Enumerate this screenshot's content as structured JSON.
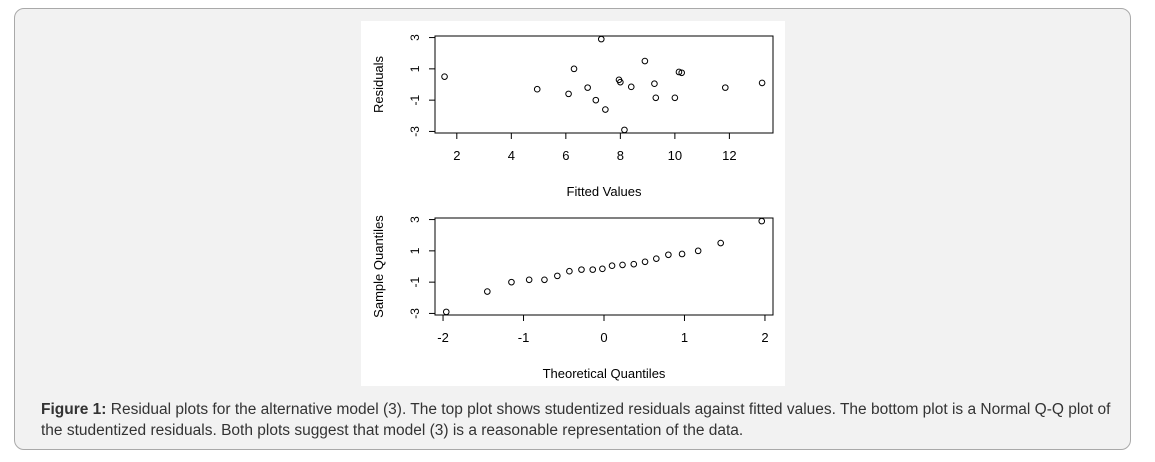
{
  "chart_data": [
    {
      "type": "scatter",
      "title": "",
      "xlabel": "Fitted Values",
      "ylabel": "Residuals",
      "xlim": [
        1.2,
        13.6
      ],
      "ylim": [
        -3.1,
        3.1
      ],
      "xticks": [
        2,
        4,
        6,
        8,
        10,
        12
      ],
      "yticks": [
        -3,
        -1,
        1,
        3
      ],
      "xtick_labels": [
        "2",
        "4",
        "6",
        "8",
        "10",
        "12"
      ],
      "ytick_labels": [
        "-3",
        "-1",
        "1",
        "3"
      ],
      "grid": false,
      "points": [
        {
          "x": 1.55,
          "y": 0.5
        },
        {
          "x": 4.95,
          "y": -0.3
        },
        {
          "x": 6.1,
          "y": -0.6
        },
        {
          "x": 6.3,
          "y": 1.0
        },
        {
          "x": 6.8,
          "y": -0.2
        },
        {
          "x": 7.1,
          "y": -1.0
        },
        {
          "x": 7.3,
          "y": 2.9
        },
        {
          "x": 7.45,
          "y": -1.6
        },
        {
          "x": 7.95,
          "y": 0.3
        },
        {
          "x": 8.0,
          "y": 0.15
        },
        {
          "x": 8.15,
          "y": -2.9
        },
        {
          "x": 8.4,
          "y": -0.15
        },
        {
          "x": 8.9,
          "y": 1.5
        },
        {
          "x": 9.25,
          "y": 0.05
        },
        {
          "x": 9.3,
          "y": -0.85
        },
        {
          "x": 10.0,
          "y": -0.85
        },
        {
          "x": 10.15,
          "y": 0.8
        },
        {
          "x": 10.25,
          "y": 0.75
        },
        {
          "x": 11.85,
          "y": -0.2
        },
        {
          "x": 13.2,
          "y": 0.1
        }
      ]
    },
    {
      "type": "scatter",
      "title": "",
      "xlabel": "Theoretical Quantiles",
      "ylabel": "Sample Quantiles",
      "xlim": [
        -2.1,
        2.1
      ],
      "ylim": [
        -3.1,
        3.1
      ],
      "xticks": [
        -2,
        -1,
        0,
        1,
        2
      ],
      "yticks": [
        -3,
        -1,
        1,
        3
      ],
      "xtick_labels": [
        "-2",
        "-1",
        "0",
        "1",
        "2"
      ],
      "ytick_labels": [
        "-3",
        "-1",
        "1",
        "3"
      ],
      "grid": false,
      "points": [
        {
          "x": -1.96,
          "y": -2.9
        },
        {
          "x": -1.45,
          "y": -1.6
        },
        {
          "x": -1.15,
          "y": -1.0
        },
        {
          "x": -0.93,
          "y": -0.85
        },
        {
          "x": -0.74,
          "y": -0.85
        },
        {
          "x": -0.58,
          "y": -0.6
        },
        {
          "x": -0.43,
          "y": -0.3
        },
        {
          "x": -0.28,
          "y": -0.2
        },
        {
          "x": -0.14,
          "y": -0.2
        },
        {
          "x": -0.02,
          "y": -0.15
        },
        {
          "x": 0.1,
          "y": 0.05
        },
        {
          "x": 0.23,
          "y": 0.1
        },
        {
          "x": 0.37,
          "y": 0.15
        },
        {
          "x": 0.51,
          "y": 0.3
        },
        {
          "x": 0.65,
          "y": 0.5
        },
        {
          "x": 0.8,
          "y": 0.75
        },
        {
          "x": 0.97,
          "y": 0.8
        },
        {
          "x": 1.17,
          "y": 1.0
        },
        {
          "x": 1.45,
          "y": 1.5
        },
        {
          "x": 1.96,
          "y": 2.9
        }
      ]
    }
  ],
  "caption": {
    "label": "Figure 1:",
    "text": " Residual plots for the alternative model (3). The top plot shows studentized residuals against fitted values. The bottom plot is a Normal Q-Q plot of the studentized residuals. Both plots suggest that model (3) is a reasonable representation of the data."
  }
}
